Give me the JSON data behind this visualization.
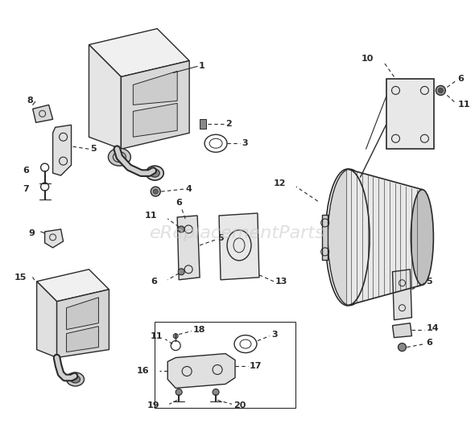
{
  "bg_color": "#ffffff",
  "line_color": "#2a2a2a",
  "watermark_text": "eReplacementParts",
  "watermark_color": "#c8c8c8",
  "fig_width": 5.9,
  "fig_height": 5.37,
  "dpi": 100,
  "xlim": [
    0,
    590
  ],
  "ylim": [
    0,
    537
  ]
}
